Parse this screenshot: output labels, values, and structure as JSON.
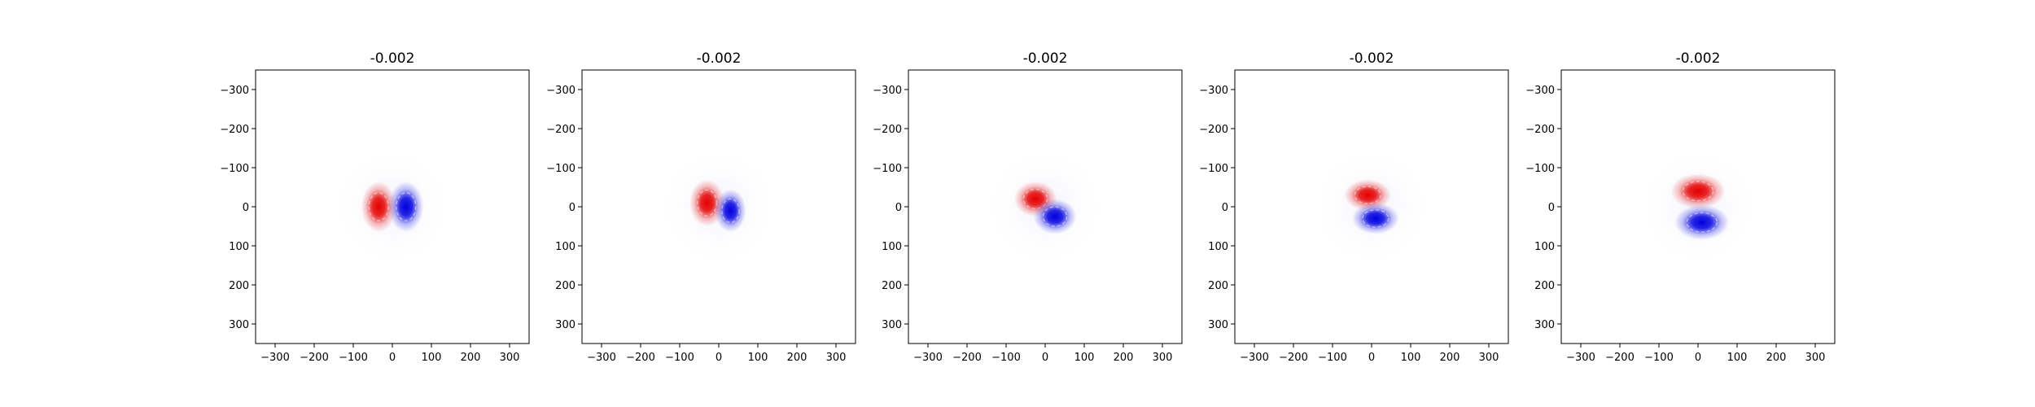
{
  "chart_data": [
    {
      "type": "heatmap",
      "title": "-0.002",
      "xlabel": "",
      "ylabel": "",
      "xlim": [
        -350,
        350
      ],
      "ylim": [
        350,
        -350
      ],
      "x_ticks": [
        -300,
        -200,
        -100,
        0,
        100,
        200,
        300
      ],
      "y_ticks": [
        -300,
        -200,
        -100,
        0,
        100,
        200,
        300
      ],
      "grid": false,
      "colormap": "bwr",
      "lobes": [
        {
          "sign": "positive",
          "cx": -35,
          "cy": 0,
          "rx": 45,
          "ry": 65,
          "color": "#e50000"
        },
        {
          "sign": "negative",
          "cx": 35,
          "cy": 0,
          "rx": 45,
          "ry": 65,
          "color": "#0000e0"
        }
      ]
    },
    {
      "type": "heatmap",
      "title": "-0.002",
      "xlabel": "",
      "ylabel": "",
      "xlim": [
        -350,
        350
      ],
      "ylim": [
        350,
        -350
      ],
      "x_ticks": [
        -300,
        -200,
        -100,
        0,
        100,
        200,
        300
      ],
      "y_ticks": [
        -300,
        -200,
        -100,
        0,
        100,
        200,
        300
      ],
      "grid": false,
      "colormap": "bwr",
      "lobes": [
        {
          "sign": "positive",
          "cx": -30,
          "cy": -10,
          "rx": 45,
          "ry": 60,
          "color": "#e50000"
        },
        {
          "sign": "negative",
          "cx": 30,
          "cy": 10,
          "rx": 40,
          "ry": 55,
          "color": "#0000e0"
        }
      ]
    },
    {
      "type": "heatmap",
      "title": "-0.002",
      "xlabel": "",
      "ylabel": "",
      "xlim": [
        -350,
        350
      ],
      "ylim": [
        350,
        -350
      ],
      "x_ticks": [
        -300,
        -200,
        -100,
        0,
        100,
        200,
        300
      ],
      "y_ticks": [
        -300,
        -200,
        -100,
        0,
        100,
        200,
        300
      ],
      "grid": false,
      "colormap": "bwr",
      "lobes": [
        {
          "sign": "positive",
          "cx": -25,
          "cy": -20,
          "rx": 55,
          "ry": 45,
          "color": "#e50000"
        },
        {
          "sign": "negative",
          "cx": 25,
          "cy": 25,
          "rx": 55,
          "ry": 45,
          "color": "#0000e0"
        }
      ]
    },
    {
      "type": "heatmap",
      "title": "-0.002",
      "xlabel": "",
      "ylabel": "",
      "xlim": [
        -350,
        350
      ],
      "ylim": [
        350,
        -350
      ],
      "x_ticks": [
        -300,
        -200,
        -100,
        0,
        100,
        200,
        300
      ],
      "y_ticks": [
        -300,
        -200,
        -100,
        0,
        100,
        200,
        300
      ],
      "grid": false,
      "colormap": "bwr",
      "lobes": [
        {
          "sign": "positive",
          "cx": -10,
          "cy": -30,
          "rx": 60,
          "ry": 40,
          "color": "#e50000"
        },
        {
          "sign": "negative",
          "cx": 10,
          "cy": 30,
          "rx": 60,
          "ry": 40,
          "color": "#0000e0"
        }
      ]
    },
    {
      "type": "heatmap",
      "title": "-0.002",
      "xlabel": "",
      "ylabel": "",
      "xlim": [
        -350,
        350
      ],
      "ylim": [
        350,
        -350
      ],
      "x_ticks": [
        -300,
        -200,
        -100,
        0,
        100,
        200,
        300
      ],
      "y_ticks": [
        -300,
        -200,
        -100,
        0,
        100,
        200,
        300
      ],
      "grid": false,
      "colormap": "bwr",
      "lobes": [
        {
          "sign": "positive",
          "cx": 0,
          "cy": -40,
          "rx": 70,
          "ry": 45,
          "color": "#e50000"
        },
        {
          "sign": "negative",
          "cx": 10,
          "cy": 40,
          "rx": 70,
          "ry": 45,
          "color": "#0000e0"
        }
      ]
    }
  ]
}
